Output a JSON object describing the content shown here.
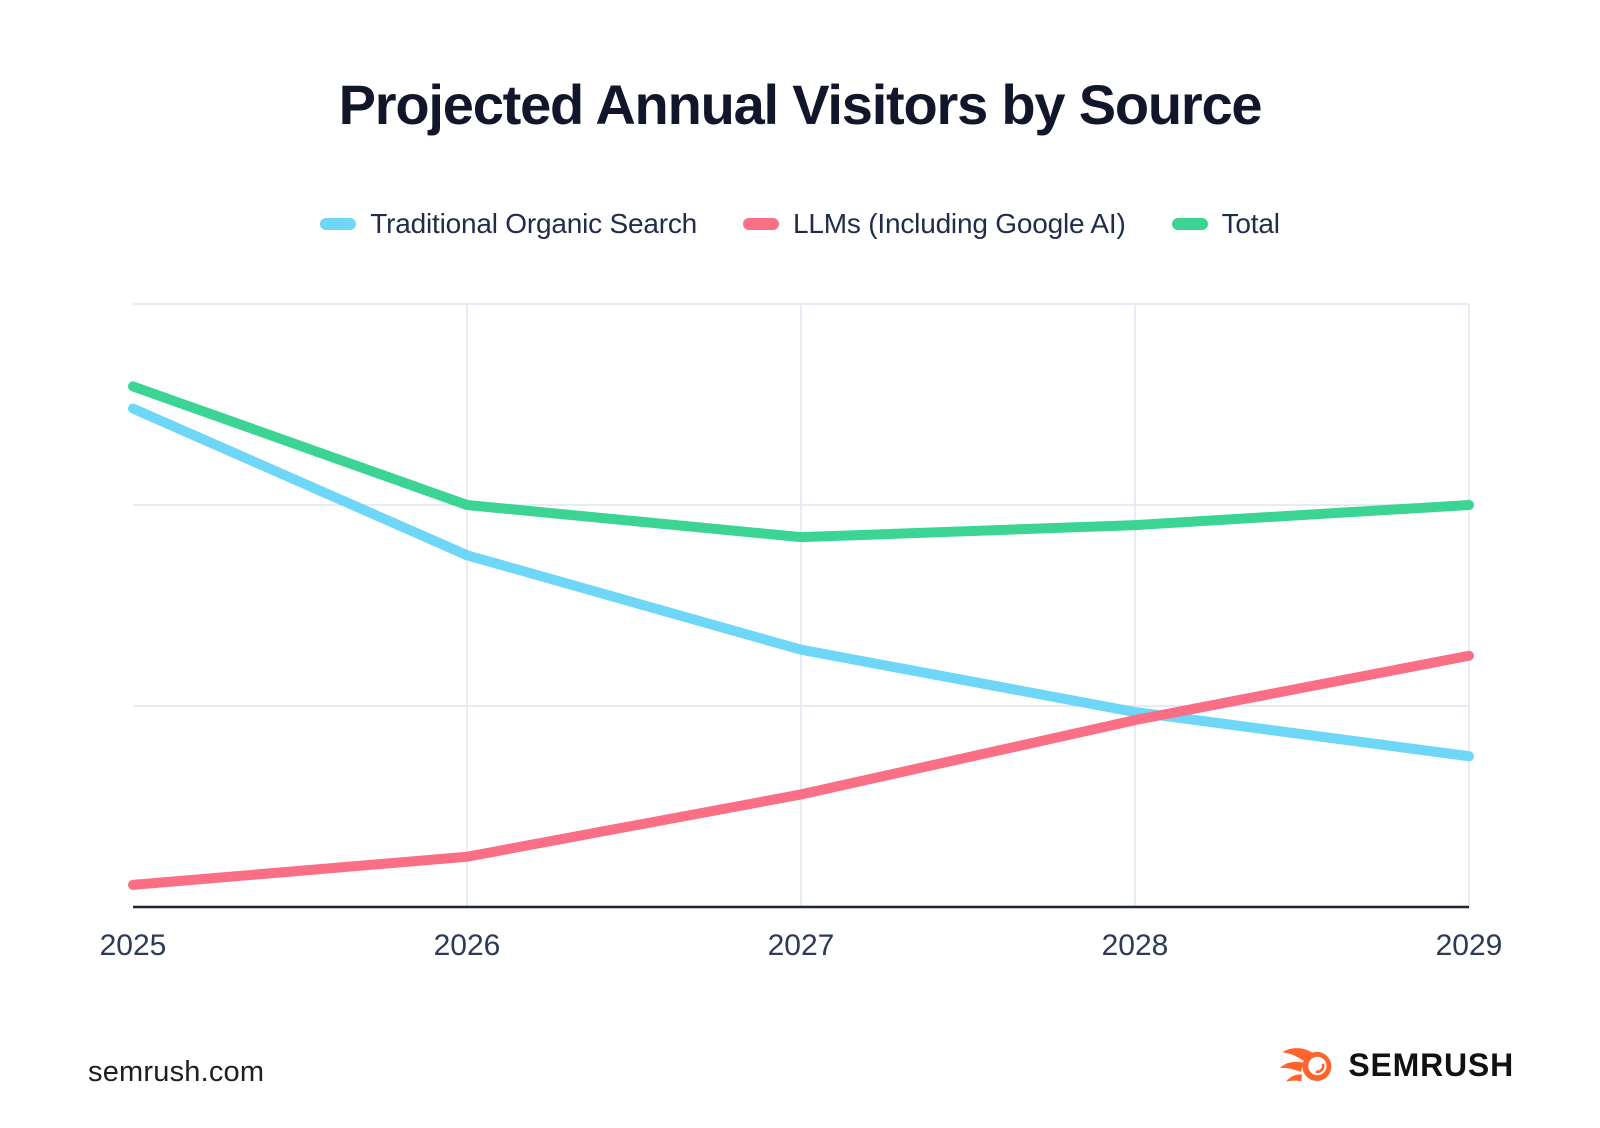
{
  "page": {
    "background": "#FFFFFF"
  },
  "chart_data": {
    "type": "line",
    "title": "Projected Annual Visitors by Source",
    "categories": [
      "2025",
      "2026",
      "2027",
      "2028",
      "2029"
    ],
    "series": [
      {
        "name": "Traditional Organic Search",
        "color": "#6ED6F7",
        "values": [
          248,
          175,
          128,
          97,
          75
        ]
      },
      {
        "name": "LLMs (Including Google AI)",
        "color": "#FA6E86",
        "values": [
          11,
          25,
          56,
          93,
          125
        ]
      },
      {
        "name": "Total",
        "color": "#3BD493",
        "values": [
          259,
          200,
          184,
          190,
          200
        ]
      }
    ],
    "xlabel": "",
    "ylabel": "",
    "ylim": [
      0,
      300
    ],
    "y_tick_labels_visible": false,
    "units_note": "y-axis is unlabeled in the image; values are relative estimates where one gridline interval = 100",
    "grid": true,
    "legend_position": "top"
  },
  "footer": {
    "source": "semrush.com",
    "brand": "SEMRUSH",
    "logo_icon": "semrush-fireball-icon"
  },
  "colors": {
    "title": "#12162A",
    "legend_text": "#202C49",
    "grid": "#E8EBF4",
    "axis": "#1C2437",
    "tick_label": "#2C3A55",
    "footer_text": "#1F1F1F",
    "logo_text": "#111111",
    "logo_orange": "#FF642D",
    "background": "#FFFFFF"
  }
}
